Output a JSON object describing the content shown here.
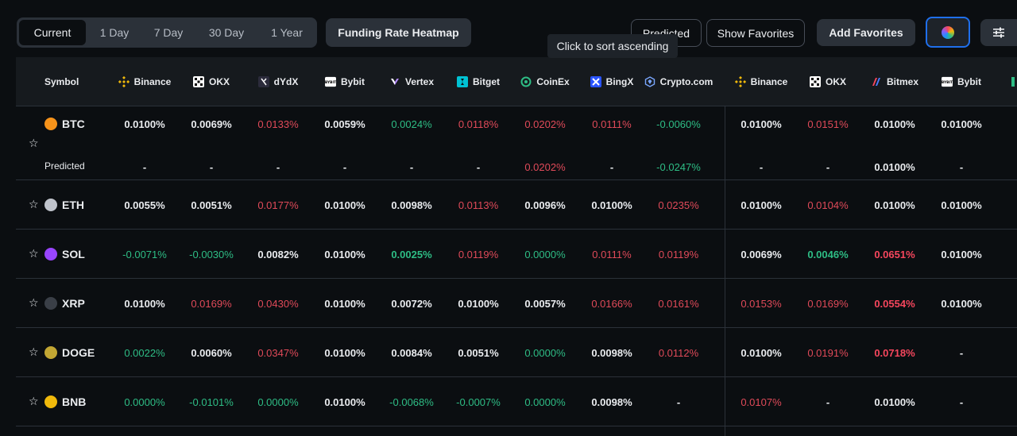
{
  "periods": [
    "Current",
    "1 Day",
    "7 Day",
    "30 Day",
    "1 Year"
  ],
  "active_period": "Current",
  "toolbar": {
    "heatmap_label": "Funding Rate Heatmap",
    "predicted_label": "Predicted",
    "favorites_label": "Show Favorites",
    "add_favorites_label": "Add Favorites",
    "color_icon": "color-wheel-icon",
    "settings_icon": "sliders-icon"
  },
  "tooltip": "Click to sort ascending",
  "table": {
    "symbol_header": "Symbol",
    "exchanges": [
      {
        "name": "Binance",
        "icon": "binance-icon"
      },
      {
        "name": "OKX",
        "icon": "okx-icon"
      },
      {
        "name": "dYdX",
        "icon": "dydx-icon"
      },
      {
        "name": "Bybit",
        "icon": "bybit-icon"
      },
      {
        "name": "Vertex",
        "icon": "vertex-icon"
      },
      {
        "name": "Bitget",
        "icon": "bitget-icon"
      },
      {
        "name": "CoinEx",
        "icon": "coinex-icon"
      },
      {
        "name": "BingX",
        "icon": "bingx-icon"
      },
      {
        "name": "Crypto.com",
        "icon": "cryptocom-icon"
      },
      {
        "name": "Binance",
        "icon": "binance-icon"
      },
      {
        "name": "OKX",
        "icon": "okx-icon"
      },
      {
        "name": "Bitmex",
        "icon": "bitmex-icon"
      },
      {
        "name": "Bybit",
        "icon": "bybit-icon"
      }
    ],
    "predicted_row_label": "Predicted",
    "rows": [
      {
        "symbol": "BTC",
        "coin_color": "#f7931a",
        "values": [
          "0.0100%",
          "0.0069%",
          "0.0133%",
          "0.0059%",
          "0.0024%",
          "0.0118%",
          "0.0202%",
          "0.0111%",
          "-0.0060%",
          "0.0100%",
          "0.0151%",
          "0.0100%",
          "0.0100%"
        ],
        "classes": [
          "neu",
          "neu",
          "pos",
          "neu",
          "neg",
          "pos",
          "pos",
          "pos",
          "neg",
          "neu",
          "pos",
          "neu",
          "neu"
        ],
        "predicted": [
          "-",
          "-",
          "-",
          "-",
          "-",
          "-",
          "0.0202%",
          "-",
          "-0.0247%",
          "-",
          "-",
          "0.0100%",
          "-"
        ],
        "predicted_classes": [
          "neu",
          "neu",
          "neu",
          "neu",
          "neu",
          "neu",
          "pos",
          "neu",
          "neg",
          "neu",
          "neu",
          "neu",
          "neu"
        ]
      },
      {
        "symbol": "ETH",
        "coin_color": "#c0c4cc",
        "values": [
          "0.0055%",
          "0.0051%",
          "0.0177%",
          "0.0100%",
          "0.0098%",
          "0.0113%",
          "0.0096%",
          "0.0100%",
          "0.0235%",
          "0.0100%",
          "0.0104%",
          "0.0100%",
          "0.0100%"
        ],
        "classes": [
          "neu",
          "neu",
          "pos",
          "neu",
          "neu",
          "pos",
          "neu",
          "neu",
          "pos",
          "neu",
          "pos",
          "neu",
          "neu"
        ]
      },
      {
        "symbol": "SOL",
        "coin_color": "#9945ff",
        "values": [
          "-0.0071%",
          "-0.0030%",
          "0.0082%",
          "0.0100%",
          "0.0025%",
          "0.0119%",
          "0.0000%",
          "0.0111%",
          "0.0119%",
          "0.0069%",
          "0.0046%",
          "0.0651%",
          "0.0100%"
        ],
        "classes": [
          "neg",
          "neg",
          "neu",
          "neu",
          "neg-b",
          "pos",
          "neg",
          "pos",
          "pos",
          "neu",
          "neg-b",
          "pos-b",
          "neu"
        ]
      },
      {
        "symbol": "XRP",
        "coin_color": "#3a3f47",
        "values": [
          "0.0100%",
          "0.0169%",
          "0.0430%",
          "0.0100%",
          "0.0072%",
          "0.0100%",
          "0.0057%",
          "0.0166%",
          "0.0161%",
          "0.0153%",
          "0.0169%",
          "0.0554%",
          "0.0100%"
        ],
        "classes": [
          "neu",
          "pos",
          "pos",
          "neu",
          "neu",
          "neu",
          "neu",
          "pos",
          "pos",
          "pos",
          "pos",
          "pos-b",
          "neu"
        ]
      },
      {
        "symbol": "DOGE",
        "coin_color": "#c2a633",
        "values": [
          "0.0022%",
          "0.0060%",
          "0.0347%",
          "0.0100%",
          "0.0084%",
          "0.0051%",
          "0.0000%",
          "0.0098%",
          "0.0112%",
          "0.0100%",
          "0.0191%",
          "0.0718%",
          "-"
        ],
        "classes": [
          "neg",
          "neu",
          "pos",
          "neu",
          "neu",
          "neu",
          "neg",
          "neu",
          "pos",
          "neu",
          "pos",
          "pos-b",
          "neu"
        ]
      },
      {
        "symbol": "BNB",
        "coin_color": "#f0b90b",
        "values": [
          "0.0000%",
          "-0.0101%",
          "0.0000%",
          "0.0100%",
          "-0.0068%",
          "-0.0007%",
          "0.0000%",
          "0.0098%",
          "-",
          "0.0107%",
          "-",
          "0.0100%",
          "-"
        ],
        "classes": [
          "neg",
          "neg",
          "neg",
          "neu",
          "neg",
          "neg",
          "neg",
          "neu",
          "neu",
          "pos",
          "neu",
          "neu",
          "neu"
        ]
      }
    ]
  },
  "colors": {
    "background": "#0b0e11",
    "positive": "#f6465d",
    "negative": "#2ebd85",
    "accent": "#1f6feb"
  }
}
